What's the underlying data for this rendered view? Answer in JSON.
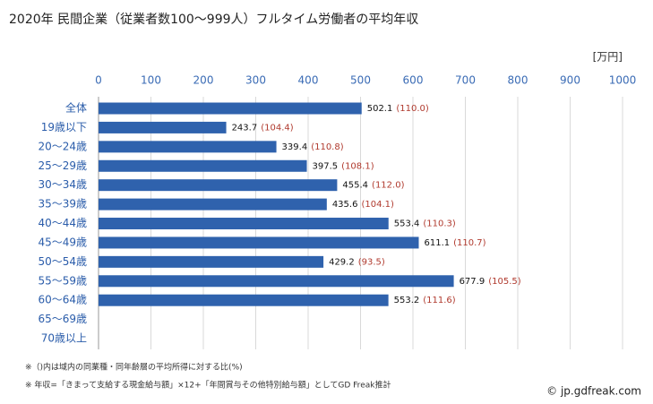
{
  "chart_data": {
    "type": "bar",
    "orientation": "horizontal",
    "title": "2020年 民間企業（従業者数100～999人）フルタイム労働者の平均年収",
    "unit_label": "[万円]",
    "categories": [
      "全体",
      "19歳以下",
      "20～24歳",
      "25～29歳",
      "30～34歳",
      "35～39歳",
      "40～44歳",
      "45～49歳",
      "50～54歳",
      "55～59歳",
      "60～64歳",
      "65～69歳",
      "70歳以上"
    ],
    "values": [
      502.1,
      243.7,
      339.4,
      397.5,
      455.4,
      435.6,
      553.4,
      611.1,
      429.2,
      677.9,
      553.2,
      null,
      null
    ],
    "ratios": [
      110.0,
      104.4,
      110.8,
      108.1,
      112.0,
      104.1,
      110.3,
      110.7,
      93.5,
      105.5,
      111.6,
      null,
      null
    ],
    "ratio_labels": [
      "(110.0)",
      "(104.4)",
      "(110.8)",
      "(108.1)",
      "(112.0)",
      "(104.1)",
      "(110.3)",
      "(110.7)",
      "(93.5)",
      "(105.5)",
      "(111.6)",
      null,
      null
    ],
    "color": "#2f62ad",
    "ratio_color": "#b03a2e",
    "xlim": [
      0,
      1000
    ],
    "xticks": [
      0,
      100,
      200,
      300,
      400,
      500,
      600,
      700,
      800,
      900,
      1000
    ],
    "grid": true,
    "notes": [
      "※（)内は域内の同業種・同年齢層の平均所得に対する比(%)",
      "※ 年収=「きまって支給する現金給与額」×12+「年間賞与その他特別給与額」としてGD Freak推計"
    ],
    "source": "© jp.gdfreak.com"
  }
}
